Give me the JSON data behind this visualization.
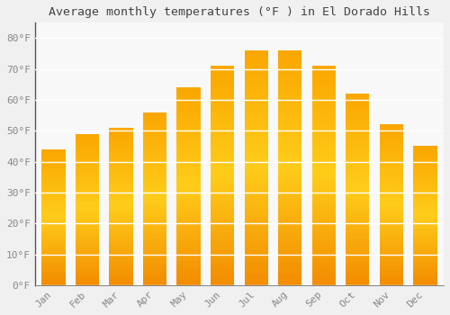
{
  "months": [
    "Jan",
    "Feb",
    "Mar",
    "Apr",
    "May",
    "Jun",
    "Jul",
    "Aug",
    "Sep",
    "Oct",
    "Nov",
    "Dec"
  ],
  "values": [
    44,
    49,
    51,
    56,
    64,
    71,
    76,
    76,
    71,
    62,
    52,
    45
  ],
  "title": "Average monthly temperatures (°F ) in El Dorado Hills",
  "bar_color_main": "#FFA500",
  "bar_color_light": "#FFD070",
  "ylim": [
    0,
    85
  ],
  "yticks": [
    0,
    10,
    20,
    30,
    40,
    50,
    60,
    70,
    80
  ],
  "ytick_labels": [
    "0°F",
    "10°F",
    "20°F",
    "30°F",
    "40°F",
    "50°F",
    "60°F",
    "70°F",
    "80°F"
  ],
  "background_color": "#f0f0f0",
  "plot_bg_color": "#f8f8f8",
  "grid_color": "#ffffff",
  "title_fontsize": 9.5,
  "tick_fontsize": 8,
  "tick_color": "#888888",
  "spine_color": "#555555"
}
